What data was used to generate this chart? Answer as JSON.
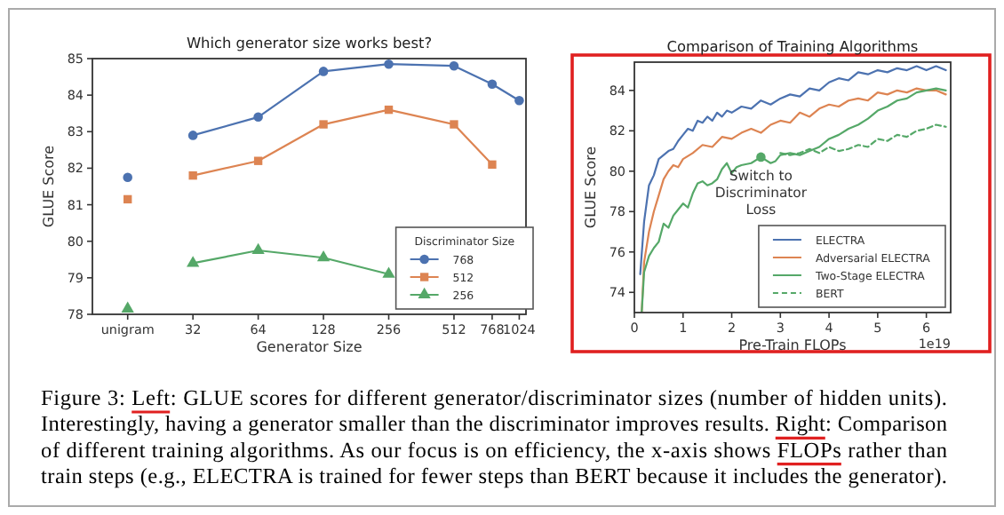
{
  "chart_data": [
    {
      "type": "line",
      "title": "Which generator size works best?",
      "xlabel": "Generator Size",
      "ylabel": "GLUE Score",
      "log": "x",
      "xlim": [
        11,
        1100
      ],
      "ylim": [
        78,
        85
      ],
      "xticks": [
        {
          "value": 16,
          "label": "unigram"
        },
        32,
        64,
        128,
        256,
        512,
        768,
        1024
      ],
      "yticks": [
        78,
        79,
        80,
        81,
        82,
        83,
        84,
        85
      ],
      "legend": "bottom right",
      "legend_title": "Discriminator Size",
      "series": [
        {
          "name": "768",
          "color": "#4c72b0",
          "marker": "circle",
          "x": [
            32,
            64,
            128,
            256,
            512,
            768,
            1024
          ],
          "values": [
            82.9,
            83.4,
            84.65,
            84.85,
            84.8,
            84.3,
            83.85
          ]
        },
        {
          "name": "512",
          "color": "#dd8452",
          "marker": "square",
          "x": [
            32,
            64,
            128,
            256,
            512,
            768
          ],
          "values": [
            81.8,
            82.2,
            83.2,
            83.6,
            83.2,
            82.1
          ]
        },
        {
          "name": "256",
          "color": "#55a868",
          "marker": "triangle",
          "x": [
            32,
            64,
            128,
            256
          ],
          "values": [
            79.4,
            79.75,
            79.55,
            79.1
          ]
        },
        {
          "type": "scatter",
          "color": "#4c72b0",
          "marker": "circle",
          "x": [
            16
          ],
          "values": [
            81.75
          ]
        },
        {
          "type": "scatter",
          "color": "#dd8452",
          "marker": "square",
          "x": [
            16
          ],
          "values": [
            81.15
          ]
        },
        {
          "type": "scatter",
          "color": "#55a868",
          "marker": "triangle",
          "x": [
            16
          ],
          "values": [
            78.15
          ]
        }
      ]
    },
    {
      "type": "line",
      "title": "Comparison of Training Algorithms",
      "xlabel": "Pre-Train FLOPs",
      "ylabel": "GLUE Score",
      "xlim": [
        0,
        6.5
      ],
      "ylim": [
        73,
        85.4
      ],
      "xticks": [
        0,
        1,
        2,
        3,
        4,
        5,
        6
      ],
      "yticks": [
        74,
        76,
        78,
        80,
        82,
        84
      ],
      "legend": "bottom right",
      "marker": "none",
      "annotations": [
        "1e19",
        {
          "text": "Switch to\nDiscriminator\nLoss",
          "x": 2.6,
          "y": 80.7
        }
      ],
      "series": [
        {
          "name": "ELECTRA",
          "color": "#4c72b0",
          "line_style": "solid",
          "x": [
            0.12,
            0.2,
            0.3,
            0.4,
            0.5,
            0.6,
            0.7,
            0.8,
            0.9,
            1.0,
            1.1,
            1.2,
            1.3,
            1.4,
            1.5,
            1.6,
            1.7,
            1.8,
            1.9,
            2.0,
            2.2,
            2.4,
            2.6,
            2.8,
            3.0,
            3.2,
            3.4,
            3.6,
            3.8,
            4.0,
            4.2,
            4.4,
            4.6,
            4.8,
            5.0,
            5.2,
            5.4,
            5.6,
            5.8,
            6.0,
            6.2,
            6.4
          ],
          "values": [
            74.9,
            77.5,
            79.3,
            79.8,
            80.6,
            80.8,
            81.0,
            81.1,
            81.5,
            81.8,
            82.1,
            82.0,
            82.5,
            82.4,
            82.7,
            82.5,
            82.9,
            82.7,
            83.0,
            82.9,
            83.2,
            83.1,
            83.5,
            83.3,
            83.6,
            83.8,
            83.7,
            84.1,
            84.0,
            84.4,
            84.6,
            84.5,
            84.9,
            84.8,
            85.0,
            84.9,
            85.1,
            85.0,
            85.2,
            85.0,
            85.2,
            85.0
          ]
        },
        {
          "name": "Adversarial ELECTRA",
          "color": "#dd8452",
          "line_style": "solid",
          "x": [
            0.15,
            0.2,
            0.3,
            0.4,
            0.5,
            0.6,
            0.7,
            0.8,
            0.9,
            1.0,
            1.2,
            1.4,
            1.6,
            1.8,
            2.0,
            2.2,
            2.4,
            2.6,
            2.8,
            3.0,
            3.2,
            3.4,
            3.6,
            3.8,
            4.0,
            4.2,
            4.4,
            4.6,
            4.8,
            5.0,
            5.2,
            5.4,
            5.6,
            5.8,
            6.0,
            6.2,
            6.4
          ],
          "values": [
            73.0,
            75.5,
            77.0,
            78.0,
            78.8,
            79.6,
            80.0,
            80.3,
            80.2,
            80.6,
            80.9,
            81.3,
            81.2,
            81.7,
            81.6,
            81.9,
            82.1,
            81.9,
            82.3,
            82.5,
            82.4,
            82.9,
            82.7,
            83.1,
            83.3,
            83.2,
            83.5,
            83.6,
            83.5,
            83.9,
            83.8,
            84.0,
            83.9,
            84.1,
            84.0,
            84.0,
            83.8
          ]
        },
        {
          "name": "Two-Stage ELECTRA",
          "color": "#55a868",
          "line_style": "solid",
          "x": [
            0.15,
            0.2,
            0.3,
            0.4,
            0.5,
            0.6,
            0.7,
            0.8,
            0.9,
            1.0,
            1.1,
            1.2,
            1.3,
            1.4,
            1.5,
            1.6,
            1.7,
            1.8,
            1.9,
            2.0,
            2.1,
            2.2,
            2.4,
            2.6,
            2.8,
            2.9,
            3.0,
            3.2,
            3.4,
            3.6,
            3.8,
            4.0,
            4.2,
            4.4,
            4.6,
            4.8,
            5.0,
            5.2,
            5.4,
            5.6,
            5.8,
            6.0,
            6.2,
            6.4
          ],
          "values": [
            73.0,
            75.0,
            75.8,
            76.2,
            76.5,
            77.4,
            77.2,
            77.8,
            78.1,
            78.4,
            78.2,
            78.9,
            79.4,
            79.5,
            79.3,
            79.4,
            79.6,
            80.1,
            80.4,
            79.9,
            80.2,
            80.3,
            80.4,
            80.7,
            80.4,
            80.5,
            80.8,
            80.9,
            80.8,
            81.0,
            81.2,
            81.6,
            81.8,
            82.1,
            82.3,
            82.6,
            83.0,
            83.2,
            83.5,
            83.6,
            83.9,
            84.0,
            84.1,
            84.0
          ]
        },
        {
          "name": "BERT",
          "color": "#55a868",
          "line_style": "dashed",
          "x": [
            3.0,
            3.2,
            3.4,
            3.6,
            3.8,
            4.0,
            4.2,
            4.4,
            4.6,
            4.8,
            5.0,
            5.2,
            5.4,
            5.6,
            5.8,
            6.0,
            6.2,
            6.4
          ],
          "values": [
            80.9,
            80.8,
            80.9,
            81.1,
            80.9,
            81.2,
            81.0,
            81.1,
            81.3,
            81.2,
            81.6,
            81.5,
            81.8,
            81.7,
            82.0,
            82.1,
            82.3,
            82.2
          ]
        },
        {
          "type": "scatter",
          "color": "#55a868",
          "marker": "circle",
          "x": [
            2.6
          ],
          "values": [
            80.7
          ]
        }
      ]
    },
    {
      "type": "other",
      "annotations": [
        "Figure 3: Left: GLUE scores for different generator/discriminator sizes (number of hidden units).",
        "Interestingly, having a generator smaller than the discriminator improves results. Right: Comparison",
        "of different training algorithms. As our focus is on efficiency, the x-axis shows FLOPs rather than",
        "train steps (e.g., ELECTRA is trained for fewer steps than BERT because it includes the generator)."
      ]
    }
  ]
}
